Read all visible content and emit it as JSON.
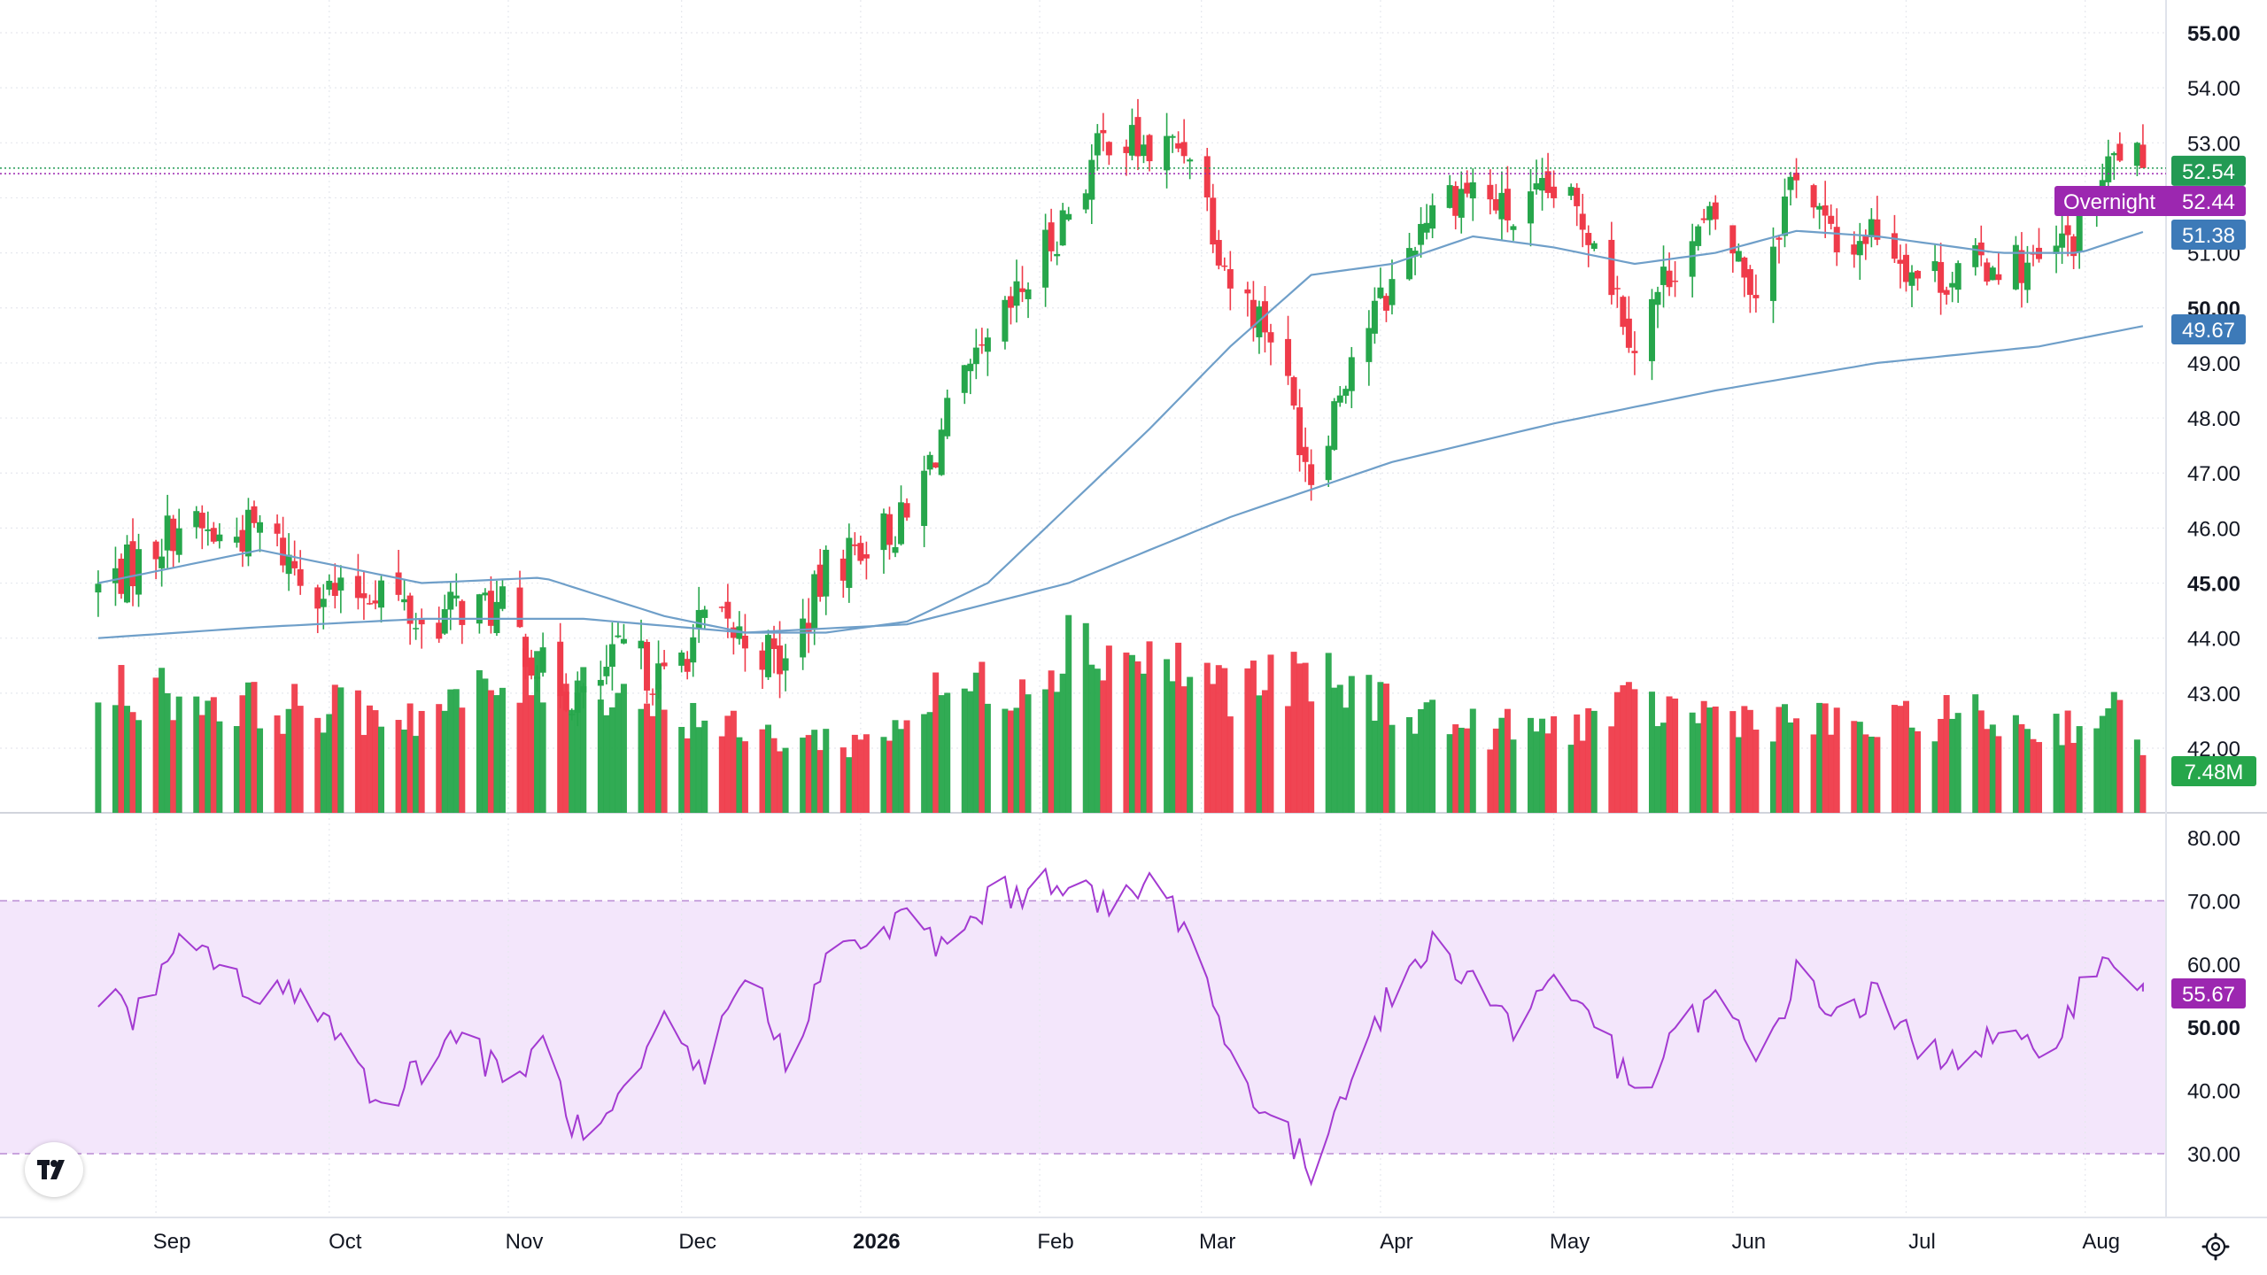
{
  "app": {
    "logo_name": "tradingview-logo",
    "settings_icon": "gear-icon"
  },
  "colors": {
    "up": "#26a64b",
    "down": "#ef3b4a",
    "ma": "#6f9fc9",
    "rsi_line": "#a33ad1",
    "rsi_band": "#f3e6fb",
    "last_price_tag": "#229a54",
    "overnight_tag": "#9c27b0",
    "ma_tag": "#3d7ab8",
    "rsi_tag": "#9c27b0",
    "volume_tag": "#26a64b",
    "grid": "#e6e8ee"
  },
  "chart_data": [
    {
      "type": "candlestick",
      "pane": "price",
      "y_axis": {
        "ylim": [
          40.5,
          55.5
        ],
        "ticks": [
          "55.00",
          "54.00",
          "53.00",
          "52.00",
          "51.00",
          "50.00",
          "49.00",
          "48.00",
          "47.00",
          "46.00",
          "45.00",
          "44.00",
          "43.00",
          "42.00"
        ],
        "bold_ticks": [
          "55.00",
          "50.00",
          "45.00"
        ]
      },
      "x_axis": {
        "labels": [
          "Sep",
          "Oct",
          "Nov",
          "Dec",
          "2026",
          "Feb",
          "Mar",
          "Apr",
          "May",
          "Jun",
          "Jul",
          "Aug"
        ],
        "bold_labels": [
          "2026"
        ]
      },
      "grid": true,
      "close_path": [
        [
          "2025-08-22",
          44.9
        ],
        [
          "2025-08-29",
          45.4
        ],
        [
          "2025-09-05",
          46.1
        ],
        [
          "2025-09-12",
          45.8
        ],
        [
          "2025-09-19",
          46.0
        ],
        [
          "2025-09-26",
          45.2
        ],
        [
          "2025-10-03",
          44.7
        ],
        [
          "2025-10-10",
          45.0
        ],
        [
          "2025-10-17",
          44.2
        ],
        [
          "2025-10-24",
          44.6
        ],
        [
          "2025-10-31",
          44.5
        ],
        [
          "2025-11-07",
          43.4
        ],
        [
          "2025-11-14",
          42.8
        ],
        [
          "2025-11-21",
          43.8
        ],
        [
          "2025-11-28",
          43.2
        ],
        [
          "2025-12-05",
          44.3
        ],
        [
          "2025-12-12",
          44.0
        ],
        [
          "2025-12-19",
          43.5
        ],
        [
          "2025-12-26",
          45.2
        ],
        [
          "2026-01-02",
          45.8
        ],
        [
          "2026-01-09",
          46.1
        ],
        [
          "2026-01-16",
          48.0
        ],
        [
          "2026-01-23",
          49.2
        ],
        [
          "2026-01-30",
          50.5
        ],
        [
          "2026-02-06",
          51.8
        ],
        [
          "2026-02-13",
          53.2
        ],
        [
          "2026-02-20",
          52.8
        ],
        [
          "2026-02-27",
          53.0
        ],
        [
          "2026-03-06",
          50.5
        ],
        [
          "2026-03-13",
          49.6
        ],
        [
          "2026-03-20",
          47.0
        ],
        [
          "2026-03-27",
          49.2
        ],
        [
          "2026-04-03",
          50.4
        ],
        [
          "2026-04-10",
          52.0
        ],
        [
          "2026-04-17",
          52.2
        ],
        [
          "2026-04-24",
          51.6
        ],
        [
          "2026-05-01",
          52.1
        ],
        [
          "2026-05-08",
          51.4
        ],
        [
          "2026-05-15",
          49.4
        ],
        [
          "2026-05-22",
          50.9
        ],
        [
          "2026-05-29",
          51.6
        ],
        [
          "2026-06-05",
          50.3
        ],
        [
          "2026-06-12",
          52.6
        ],
        [
          "2026-06-19",
          51.0
        ],
        [
          "2026-06-26",
          51.5
        ],
        [
          "2026-07-03",
          50.6
        ],
        [
          "2026-07-10",
          50.6
        ],
        [
          "2026-07-17",
          50.9
        ],
        [
          "2026-07-24",
          50.7
        ],
        [
          "2026-07-31",
          51.4
        ],
        [
          "2026-08-07",
          52.9
        ],
        [
          "2026-08-11",
          52.54
        ]
      ],
      "moving_averages": [
        {
          "points": [
            [
              "2025-08-22",
              45.0
            ],
            [
              "2025-09-19",
              45.6
            ],
            [
              "2025-10-17",
              45.0
            ],
            [
              "2025-11-07",
              45.1
            ],
            [
              "2025-11-28",
              44.4
            ],
            [
              "2025-12-12",
              44.1
            ],
            [
              "2025-12-26",
              44.1
            ],
            [
              "2026-01-09",
              44.3
            ],
            [
              "2026-01-23",
              45.0
            ],
            [
              "2026-02-06",
              46.4
            ],
            [
              "2026-02-20",
              47.8
            ],
            [
              "2026-03-06",
              49.3
            ],
            [
              "2026-03-20",
              50.6
            ],
            [
              "2026-04-03",
              50.8
            ],
            [
              "2026-04-17",
              51.3
            ],
            [
              "2026-05-01",
              51.1
            ],
            [
              "2026-05-15",
              50.8
            ],
            [
              "2026-05-29",
              51.0
            ],
            [
              "2026-06-12",
              51.4
            ],
            [
              "2026-06-26",
              51.3
            ],
            [
              "2026-07-17",
              51.0
            ],
            [
              "2026-07-31",
              51.0
            ],
            [
              "2026-08-11",
              51.38
            ]
          ],
          "last_value": "51.38"
        },
        {
          "points": [
            [
              "2025-08-22",
              44.0
            ],
            [
              "2025-09-19",
              44.2
            ],
            [
              "2025-10-17",
              44.35
            ],
            [
              "2025-11-14",
              44.35
            ],
            [
              "2025-12-12",
              44.1
            ],
            [
              "2026-01-09",
              44.25
            ],
            [
              "2026-02-06",
              45.0
            ],
            [
              "2026-03-06",
              46.2
            ],
            [
              "2026-04-03",
              47.2
            ],
            [
              "2026-05-01",
              47.9
            ],
            [
              "2026-05-29",
              48.5
            ],
            [
              "2026-06-26",
              49.0
            ],
            [
              "2026-07-24",
              49.3
            ],
            [
              "2026-08-11",
              49.67
            ]
          ],
          "last_value": "49.67"
        }
      ],
      "last_price": "52.54",
      "overnight": {
        "label": "Overnight",
        "value": "52.44"
      }
    },
    {
      "type": "bar",
      "pane": "volume",
      "last_value": "7.48M",
      "colored_by_candle": true,
      "level_path": [
        [
          "2025-08-22",
          0.58
        ],
        [
          "2025-09-19",
          0.48
        ],
        [
          "2025-10-17",
          0.45
        ],
        [
          "2025-11-07",
          0.62
        ],
        [
          "2025-11-21",
          0.55
        ],
        [
          "2025-12-12",
          0.35
        ],
        [
          "2026-01-02",
          0.32
        ],
        [
          "2026-01-16",
          0.55
        ],
        [
          "2026-01-30",
          0.6
        ],
        [
          "2026-02-06",
          0.78
        ],
        [
          "2026-02-20",
          0.7
        ],
        [
          "2026-03-06",
          0.58
        ],
        [
          "2026-03-20",
          0.6
        ],
        [
          "2026-04-03",
          0.5
        ],
        [
          "2026-04-17",
          0.38
        ],
        [
          "2026-05-01",
          0.38
        ],
        [
          "2026-05-15",
          0.48
        ],
        [
          "2026-05-29",
          0.45
        ],
        [
          "2026-06-12",
          0.42
        ],
        [
          "2026-06-26",
          0.38
        ],
        [
          "2026-07-10",
          0.45
        ],
        [
          "2026-07-24",
          0.38
        ],
        [
          "2026-08-07",
          0.45
        ],
        [
          "2026-08-11",
          0.32
        ]
      ]
    },
    {
      "type": "line",
      "pane": "rsi",
      "ylim": [
        20,
        82
      ],
      "ticks": [
        "80.00",
        "70.00",
        "60.00",
        "50.00",
        "40.00",
        "30.00"
      ],
      "bold_ticks": [
        "50.00"
      ],
      "bands": [
        30,
        70
      ],
      "last_value": "55.67",
      "points": [
        [
          "2025-08-22",
          55
        ],
        [
          "2025-08-29",
          52
        ],
        [
          "2025-09-05",
          62
        ],
        [
          "2025-09-12",
          61
        ],
        [
          "2025-09-19",
          53
        ],
        [
          "2025-09-26",
          57
        ],
        [
          "2025-10-03",
          48
        ],
        [
          "2025-10-10",
          38
        ],
        [
          "2025-10-17",
          44
        ],
        [
          "2025-10-24",
          50
        ],
        [
          "2025-10-31",
          41
        ],
        [
          "2025-11-07",
          47
        ],
        [
          "2025-11-14",
          31
        ],
        [
          "2025-11-21",
          38
        ],
        [
          "2025-11-28",
          50
        ],
        [
          "2025-12-05",
          42
        ],
        [
          "2025-12-12",
          60
        ],
        [
          "2025-12-19",
          45
        ],
        [
          "2025-12-26",
          60
        ],
        [
          "2026-01-02",
          64
        ],
        [
          "2026-01-09",
          67
        ],
        [
          "2026-01-16",
          62
        ],
        [
          "2026-01-23",
          70
        ],
        [
          "2026-01-30",
          72
        ],
        [
          "2026-02-06",
          74
        ],
        [
          "2026-02-13",
          68
        ],
        [
          "2026-02-20",
          73
        ],
        [
          "2026-02-27",
          66
        ],
        [
          "2026-03-06",
          45
        ],
        [
          "2026-03-13",
          36
        ],
        [
          "2026-03-20",
          27
        ],
        [
          "2026-03-27",
          44
        ],
        [
          "2026-04-03",
          55
        ],
        [
          "2026-04-10",
          63
        ],
        [
          "2026-04-17",
          58
        ],
        [
          "2026-04-24",
          50
        ],
        [
          "2026-05-01",
          58
        ],
        [
          "2026-05-08",
          52
        ],
        [
          "2026-05-15",
          38
        ],
        [
          "2026-05-22",
          48
        ],
        [
          "2026-05-29",
          55
        ],
        [
          "2026-06-05",
          44
        ],
        [
          "2026-06-12",
          58
        ],
        [
          "2026-06-19",
          52
        ],
        [
          "2026-06-26",
          55
        ],
        [
          "2026-07-03",
          46
        ],
        [
          "2026-07-10",
          46
        ],
        [
          "2026-07-17",
          48
        ],
        [
          "2026-07-24",
          45
        ],
        [
          "2026-07-31",
          56
        ],
        [
          "2026-08-07",
          61
        ],
        [
          "2026-08-11",
          55.67
        ]
      ]
    }
  ]
}
